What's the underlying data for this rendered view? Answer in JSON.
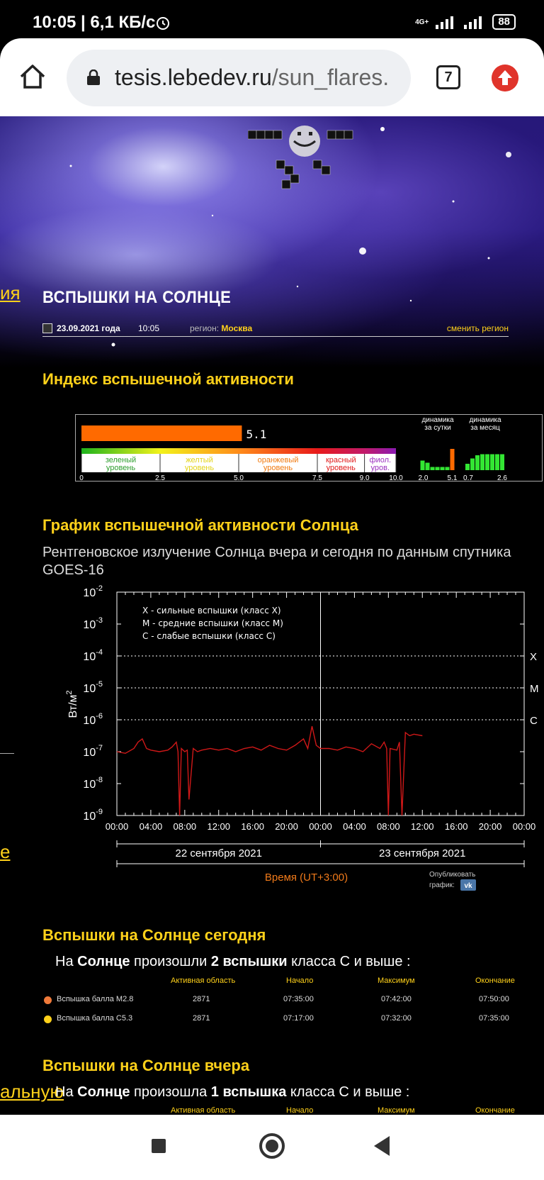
{
  "status": {
    "time": "10:05 | 6,1 КБ/с",
    "net": "4G+",
    "battery": "88"
  },
  "browser": {
    "url_host": "tesis.lebedev.ru",
    "url_path": "/sun_flares.",
    "tab_count": "7"
  },
  "page": {
    "title": "ВСПЫШКИ НА СОЛНЦЕ",
    "date": "23.09.2021 года",
    "time": "10:05",
    "region_label": "регион:",
    "region": "Москва",
    "change_region": "сменить регион",
    "left_links": [
      "ия",
      "е",
      "альную"
    ]
  },
  "index": {
    "title": "Индекс вспышечной активности",
    "value": 5.1,
    "value_label": "5.1",
    "levels": [
      {
        "label1": "зеленый",
        "label2": "уровень",
        "color": "#2e9e2e"
      },
      {
        "label1": "желтый",
        "label2": "уровень",
        "color": "#e3d41a"
      },
      {
        "label1": "оранжевый",
        "label2": "уровень",
        "color": "#f07a10"
      },
      {
        "label1": "красный",
        "label2": "уровень",
        "color": "#e01b1b"
      },
      {
        "label1": "фиол.",
        "label2": "уров.",
        "color": "#9b2fc0"
      }
    ],
    "scale_ticks": [
      "0",
      "2.5",
      "5.0",
      "7.5",
      "9.0",
      "10.0"
    ],
    "day_label1": "динамика",
    "day_label2": "за сутки",
    "day_min": "2.0",
    "day_max": "5.1",
    "day_bars": [
      0.45,
      0.35,
      0.15,
      0.15,
      0.15,
      0.15,
      1.0
    ],
    "month_label1": "динамика",
    "month_label2": "за месяц",
    "month_min": "0.7",
    "month_max": "2.6",
    "month_bars": [
      0.3,
      0.55,
      0.7,
      0.75,
      0.75,
      0.75,
      0.75,
      0.75
    ]
  },
  "graph": {
    "title": "График вспышечной активности Солнца",
    "subtitle": "Рентгеновское излучение Солнца вчера и сегодня по данным спутника GOES-16",
    "legend": [
      "X - сильные вспышки (класс X)",
      "M - средние вспышки (класс M)",
      "C - слабые вспышки (класс C)"
    ],
    "ylabel": "Вт/м",
    "ylabel_sup": "2",
    "xlabel": "Время (UT+3:00)",
    "day1": "22 сентября 2021",
    "day2": "23 сентября 2021",
    "publish1": "Опубликовать",
    "publish2": "график:",
    "vk": "vk"
  },
  "chart_data": {
    "type": "line",
    "yscale": "log",
    "ylim": [
      1e-09,
      0.01
    ],
    "ytick_exponents": [
      -2,
      -3,
      -4,
      -5,
      -6,
      -7,
      -8,
      -9
    ],
    "xticks": [
      "00:00",
      "04:00",
      "08:00",
      "12:00",
      "16:00",
      "20:00",
      "00:00",
      "04:00",
      "08:00",
      "12:00",
      "16:00",
      "20:00",
      "00:00"
    ],
    "class_levels": [
      {
        "name": "X",
        "value": 0.0001
      },
      {
        "name": "M",
        "value": 1e-05
      },
      {
        "name": "C",
        "value": 1e-06
      }
    ],
    "series": [
      {
        "x_hours": [
          0,
          1,
          2,
          2.5,
          3,
          3.5,
          4,
          5,
          6,
          6.5,
          7,
          7.2,
          7.4,
          7.6,
          8,
          8.3,
          8.5,
          9,
          9.5,
          10,
          11,
          12,
          13,
          14,
          15,
          16,
          17,
          18,
          19,
          20,
          21,
          22,
          22.5,
          23,
          23.5,
          24,
          25,
          26,
          27,
          28,
          29,
          30,
          31,
          31.5,
          31.8,
          32,
          32.2,
          33,
          33.3,
          33.6,
          34,
          34.5,
          35,
          36
        ],
        "y_exp": [
          -7,
          -7.05,
          -6.9,
          -6.7,
          -6.6,
          -6.9,
          -6.95,
          -7.0,
          -6.95,
          -6.85,
          -6.7,
          -7.0,
          -9.0,
          -6.9,
          -7.0,
          -6.95,
          -8.5,
          -6.9,
          -7.0,
          -6.95,
          -6.9,
          -6.95,
          -6.9,
          -7.0,
          -6.9,
          -6.85,
          -6.95,
          -6.8,
          -6.9,
          -6.95,
          -6.8,
          -6.6,
          -6.9,
          -6.2,
          -6.8,
          -6.9,
          -6.9,
          -6.95,
          -6.85,
          -6.9,
          -7.0,
          -6.75,
          -6.9,
          -6.7,
          -6.9,
          -9.0,
          -6.9,
          -6.95,
          -6.7,
          -9.0,
          -6.4,
          -6.5,
          -6.45,
          -6.5
        ]
      }
    ]
  },
  "today": {
    "title": "Вспышки на Солнце сегодня",
    "s1": "На ",
    "s2": "Солнце",
    "s3": " произошли ",
    "s4": "2 вспышки",
    "s5": " класса С и выше :",
    "headers": [
      "Активная область",
      "Начало",
      "Максимум",
      "Окончание"
    ],
    "rows": [
      {
        "name": "Вспышка балла M2.8",
        "color": "#f07a3a",
        "area": "2871",
        "start": "07:35:00",
        "max": "07:42:00",
        "end": "07:50:00"
      },
      {
        "name": "Вспышка балла C5.3",
        "color": "#ffd11a",
        "area": "2871",
        "start": "07:17:00",
        "max": "07:32:00",
        "end": "07:35:00"
      }
    ]
  },
  "yesterday": {
    "title": "Вспышки на Солнце вчера",
    "s1": "На ",
    "s2": "Солнце",
    "s3": " произошла ",
    "s4": "1 вспышка",
    "s5": " класса С и выше :",
    "headers": [
      "Активная область",
      "Начало",
      "Максимум",
      "Окончание"
    ]
  }
}
